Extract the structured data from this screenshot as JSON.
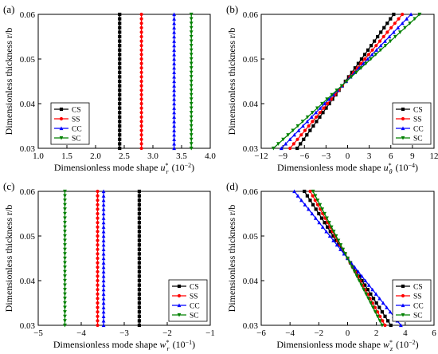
{
  "series_colors": {
    "CS": "#000000",
    "SS": "#ff0000",
    "CC": "#0000ff",
    "SC": "#008000"
  },
  "series_markers": {
    "CS": "square",
    "SS": "circle",
    "CC": "triangle-up",
    "SC": "triangle-down"
  },
  "chart_data": [
    {
      "panel": "(a)",
      "type": "line",
      "xlabel": "Dimensionless mode shape",
      "xsym": "u",
      "xsub": "r",
      "xunit": "(10",
      "xexp": "-2",
      "ylabel": "Dimensionless thickness r/b",
      "xlim": [
        1.0,
        4.0
      ],
      "ylim": [
        0.03,
        0.06
      ],
      "xticks": [
        1.0,
        1.5,
        2.0,
        2.5,
        3.0,
        3.5,
        4.0
      ],
      "xtick_labels": [
        "1.0",
        "1.5",
        "2.0",
        "2.5",
        "3.0",
        "3.5",
        "4.0"
      ],
      "yticks": [
        0.03,
        0.04,
        0.05,
        0.06
      ],
      "ytick_labels": [
        "0.03",
        "0.04",
        "0.05",
        "0.06"
      ],
      "legend": "bottom-left",
      "series": [
        {
          "name": "CS",
          "x": [
            2.42,
            2.42
          ]
        },
        {
          "name": "SS",
          "x": [
            2.8,
            2.8
          ]
        },
        {
          "name": "CC",
          "x": [
            3.37,
            3.37
          ]
        },
        {
          "name": "SC",
          "x": [
            3.67,
            3.67
          ]
        }
      ]
    },
    {
      "panel": "(b)",
      "type": "line",
      "xlabel": "Dimensionless mode shape",
      "xsym": "u",
      "xsub": "θ",
      "xunit": "(10",
      "xexp": "-4",
      "ylabel": "Dimensionless thickness r/b",
      "xlim": [
        -12,
        12
      ],
      "ylim": [
        0.03,
        0.06
      ],
      "xticks": [
        -12,
        -9,
        -6,
        -3,
        0,
        3,
        6,
        9,
        12
      ],
      "xtick_labels": [
        "-12",
        "-9",
        "-6",
        "-3",
        "0",
        "3",
        "6",
        "9",
        "12"
      ],
      "yticks": [
        0.03,
        0.04,
        0.05,
        0.06
      ],
      "ytick_labels": [
        "0.03",
        "0.04",
        "0.05",
        "0.06"
      ],
      "legend": "bottom-right",
      "series": [
        {
          "name": "CS",
          "x": [
            -7.0,
            6.4
          ]
        },
        {
          "name": "SS",
          "x": [
            -8.0,
            7.6
          ]
        },
        {
          "name": "CC",
          "x": [
            -9.2,
            8.8
          ]
        },
        {
          "name": "SC",
          "x": [
            -10.3,
            10.0
          ]
        }
      ]
    },
    {
      "panel": "(c)",
      "type": "line",
      "xlabel": "Dimensionless mode shape",
      "xsym": "w",
      "xsub": "r",
      "xunit": "(10",
      "xexp": "-1",
      "ylabel": "Dimensionless thickness r/b",
      "xlim": [
        -5,
        -1
      ],
      "ylim": [
        0.03,
        0.06
      ],
      "xticks": [
        -5,
        -4,
        -3,
        -2,
        -1
      ],
      "xtick_labels": [
        "-5",
        "-4",
        "-3",
        "-2",
        "-1"
      ],
      "yticks": [
        0.03,
        0.04,
        0.05,
        0.06
      ],
      "ytick_labels": [
        "0.03",
        "0.04",
        "0.05",
        "0.06"
      ],
      "legend": "bottom-right",
      "series": [
        {
          "name": "CS",
          "x": [
            -2.65,
            -2.65
          ]
        },
        {
          "name": "SS",
          "x": [
            -3.62,
            -3.62
          ]
        },
        {
          "name": "CC",
          "x": [
            -3.48,
            -3.48
          ]
        },
        {
          "name": "SC",
          "x": [
            -4.38,
            -4.38
          ]
        }
      ]
    },
    {
      "panel": "(d)",
      "type": "line",
      "xlabel": "Dimensionless mode shape",
      "xsym": "w",
      "xsub": "z",
      "xunit": "(10",
      "xexp": "-2",
      "ylabel": "Dimensionless thickness r/b",
      "xlim": [
        -6,
        6
      ],
      "ylim": [
        0.03,
        0.06
      ],
      "xticks": [
        -6,
        -4,
        -2,
        0,
        2,
        4,
        6
      ],
      "xtick_labels": [
        "-6",
        "-4",
        "-2",
        "0",
        "2",
        "4",
        "6"
      ],
      "yticks": [
        0.03,
        0.04,
        0.05,
        0.06
      ],
      "ytick_labels": [
        "0.03",
        "0.04",
        "0.05",
        "0.06"
      ],
      "legend": "bottom-right",
      "series": [
        {
          "name": "CS",
          "x": [
            3.0,
            -3.0
          ]
        },
        {
          "name": "SS",
          "x": [
            2.6,
            -2.6
          ]
        },
        {
          "name": "CC",
          "x": [
            3.7,
            -3.7
          ]
        },
        {
          "name": "SC",
          "x": [
            2.4,
            -2.4
          ]
        }
      ]
    }
  ]
}
